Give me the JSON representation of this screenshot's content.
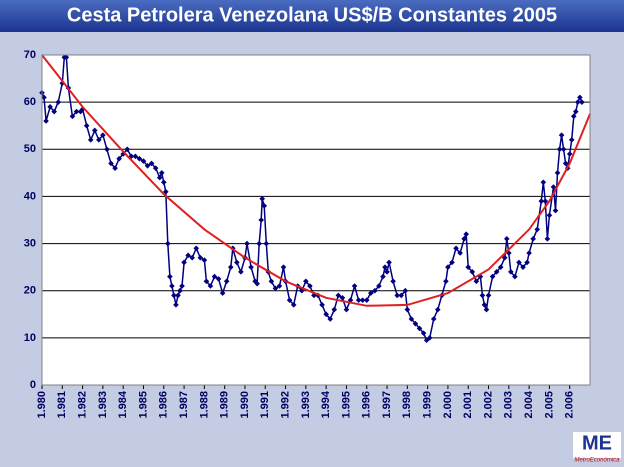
{
  "chart_data": {
    "type": "line",
    "title": "Cesta Petrolera Venezolana US$/B Constantes 2005",
    "xlim": [
      1980,
      2007
    ],
    "ylim": [
      0,
      70
    ],
    "yticks": [
      0,
      10,
      20,
      30,
      40,
      50,
      60,
      70
    ],
    "xticks": [
      {
        "value": 1980,
        "label": "1.980"
      },
      {
        "value": 1981,
        "label": "1.981"
      },
      {
        "value": 1982,
        "label": "1.982"
      },
      {
        "value": 1983,
        "label": "1.983"
      },
      {
        "value": 1984,
        "label": "1.984"
      },
      {
        "value": 1985,
        "label": "1.985"
      },
      {
        "value": 1986,
        "label": "1.986"
      },
      {
        "value": 1987,
        "label": "1.987"
      },
      {
        "value": 1988,
        "label": "1.988"
      },
      {
        "value": 1989,
        "label": "1.989"
      },
      {
        "value": 1990,
        "label": "1.990"
      },
      {
        "value": 1991,
        "label": "1.991"
      },
      {
        "value": 1992,
        "label": "1.992"
      },
      {
        "value": 1993,
        "label": "1.993"
      },
      {
        "value": 1994,
        "label": "1.994"
      },
      {
        "value": 1995,
        "label": "1.995"
      },
      {
        "value": 1996,
        "label": "1.996"
      },
      {
        "value": 1997,
        "label": "1.997"
      },
      {
        "value": 1998,
        "label": "1.998"
      },
      {
        "value": 1999,
        "label": "1.999"
      },
      {
        "value": 2000,
        "label": "2.000"
      },
      {
        "value": 2001,
        "label": "2.001"
      },
      {
        "value": 2002,
        "label": "2.002"
      },
      {
        "value": 2003,
        "label": "2.003"
      },
      {
        "value": 2004,
        "label": "2.004"
      },
      {
        "value": 2005,
        "label": "2.005"
      },
      {
        "value": 2006,
        "label": "2.006"
      }
    ],
    "grid": true,
    "series": [
      {
        "color": "#000080",
        "markers": true,
        "x": [
          1980.0,
          1980.1,
          1980.2,
          1980.4,
          1980.6,
          1980.8,
          1981.0,
          1981.1,
          1981.2,
          1981.3,
          1981.5,
          1981.7,
          1981.9,
          1982.0,
          1982.2,
          1982.4,
          1982.6,
          1982.8,
          1983.0,
          1983.2,
          1983.4,
          1983.6,
          1983.8,
          1984.0,
          1984.2,
          1984.4,
          1984.6,
          1984.8,
          1985.0,
          1985.2,
          1985.4,
          1985.6,
          1985.8,
          1985.9,
          1986.0,
          1986.1,
          1986.2,
          1986.3,
          1986.4,
          1986.5,
          1986.6,
          1986.7,
          1986.8,
          1986.9,
          1987.0,
          1987.2,
          1987.4,
          1987.6,
          1987.8,
          1988.0,
          1988.1,
          1988.3,
          1988.5,
          1988.7,
          1988.9,
          1989.1,
          1989.3,
          1989.4,
          1989.6,
          1989.8,
          1990.0,
          1990.1,
          1990.3,
          1990.5,
          1990.6,
          1990.7,
          1990.8,
          1990.85,
          1990.95,
          1991.05,
          1991.15,
          1991.3,
          1991.5,
          1991.7,
          1991.9,
          1992.0,
          1992.2,
          1992.4,
          1992.6,
          1992.8,
          1993.0,
          1993.2,
          1993.4,
          1993.6,
          1993.8,
          1994.0,
          1994.2,
          1994.4,
          1994.6,
          1994.8,
          1995.0,
          1995.2,
          1995.4,
          1995.6,
          1995.8,
          1996.0,
          1996.2,
          1996.4,
          1996.6,
          1996.8,
          1996.9,
          1997.0,
          1997.1,
          1997.3,
          1997.5,
          1997.7,
          1997.9,
          1998.0,
          1998.2,
          1998.4,
          1998.6,
          1998.8,
          1998.95,
          1999.1,
          1999.3,
          1999.5,
          1999.7,
          1999.9,
          2000.0,
          2000.2,
          2000.4,
          2000.6,
          2000.8,
          2000.9,
          2001.0,
          2001.2,
          2001.4,
          2001.6,
          2001.7,
          2001.8,
          2001.9,
          2002.0,
          2002.2,
          2002.4,
          2002.6,
          2002.8,
          2002.9,
          2003.0,
          2003.1,
          2003.3,
          2003.5,
          2003.7,
          2003.9,
          2004.0,
          2004.2,
          2004.4,
          2004.6,
          2004.7,
          2004.8,
          2004.9,
          2005.0,
          2005.2,
          2005.3,
          2005.4,
          2005.5,
          2005.6,
          2005.7,
          2005.8,
          2005.9,
          2006.0,
          2006.1,
          2006.2,
          2006.3,
          2006.4,
          2006.5,
          2006.6
        ],
        "values": [
          62,
          61,
          56,
          59,
          58,
          60,
          64,
          69.5,
          69.5,
          63,
          57,
          58,
          58,
          58.5,
          55,
          52,
          54,
          52,
          53,
          50,
          47,
          46,
          48,
          49,
          50,
          48.5,
          48.5,
          48,
          47.5,
          46.5,
          47,
          46,
          44,
          45,
          43,
          41,
          30,
          23,
          21,
          19,
          17,
          19,
          20,
          21,
          26,
          27.5,
          27,
          29,
          27,
          26.5,
          22,
          21,
          23,
          22.5,
          19.5,
          22,
          25,
          29,
          26,
          24,
          27,
          30,
          25,
          22,
          21.5,
          30,
          35,
          39.5,
          38,
          30,
          24,
          22,
          20.5,
          21,
          25,
          22,
          18,
          17,
          21,
          20,
          22,
          21,
          19,
          19,
          17,
          15,
          14,
          16,
          19,
          18.5,
          16,
          18,
          21,
          18,
          18,
          18,
          19.5,
          20,
          21,
          23,
          25,
          24,
          26,
          22,
          19,
          19,
          20,
          16,
          14,
          13,
          12,
          11,
          9.5,
          10,
          14,
          16,
          19,
          22,
          25,
          26,
          29,
          28,
          31,
          32,
          25,
          24,
          22,
          23,
          19,
          17,
          16,
          19,
          23,
          24,
          25,
          27,
          31,
          28,
          24,
          23,
          26,
          25,
          26,
          28,
          31,
          33,
          39,
          43,
          39,
          31,
          36,
          42,
          37,
          45,
          50,
          53,
          50,
          47,
          46,
          49,
          52,
          57,
          58,
          60,
          61,
          60
        ]
      },
      {
        "color": "#e02020",
        "markers": false,
        "x": [
          1980,
          1982,
          1984,
          1986,
          1988,
          1990,
          1992,
          1994,
          1996,
          1998,
          2000,
          2002,
          2004,
          2005,
          2006,
          2007
        ],
        "values": [
          70,
          59,
          49.5,
          40.5,
          33,
          27,
          22,
          18.5,
          16.8,
          17,
          19.5,
          24.5,
          33,
          39,
          47,
          57.5
        ]
      }
    ]
  },
  "logo": {
    "letters": "ME",
    "name": "MetroEconómica"
  }
}
